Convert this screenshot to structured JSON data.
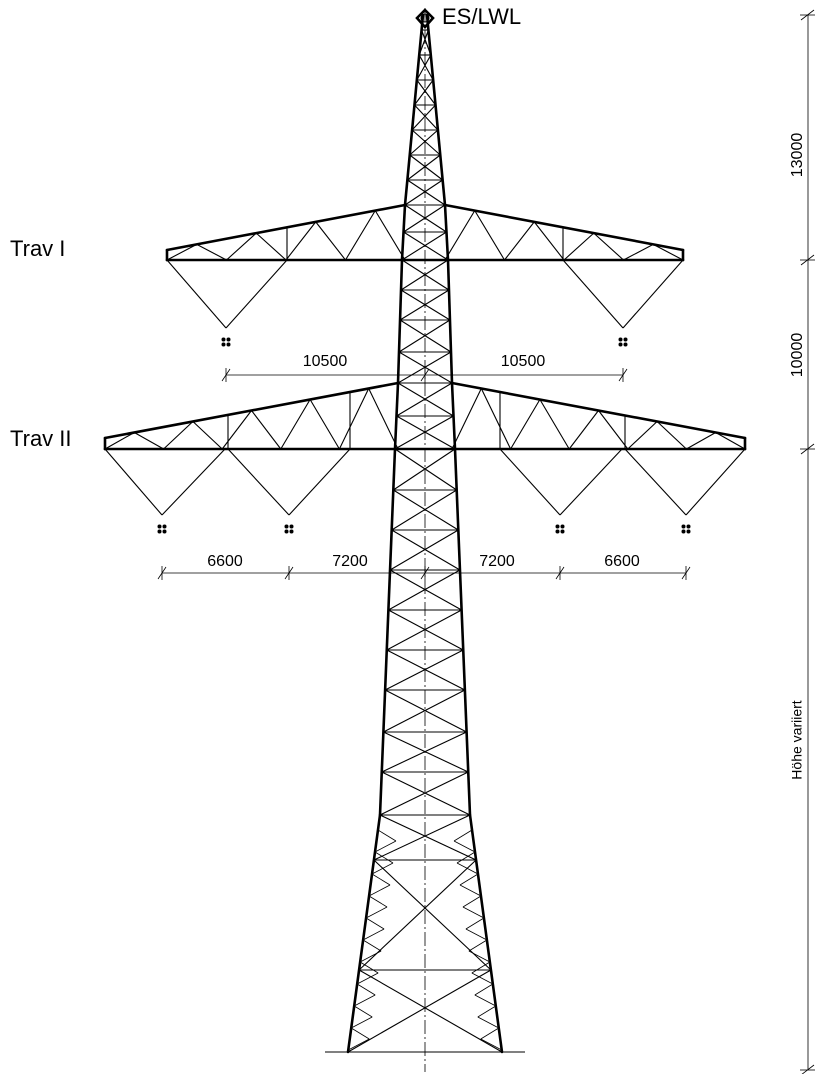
{
  "labels": {
    "top": "ES/LWL",
    "crossarm_1": "Trav I",
    "crossarm_2": "Trav II"
  },
  "horizontal_dimensions": {
    "crossarm_1": [
      "10500",
      "10500"
    ],
    "crossarm_2": [
      "6600",
      "7200",
      "7200",
      "6600"
    ]
  },
  "vertical_dimensions": [
    "13000",
    "10000",
    "Höhe variiert"
  ]
}
